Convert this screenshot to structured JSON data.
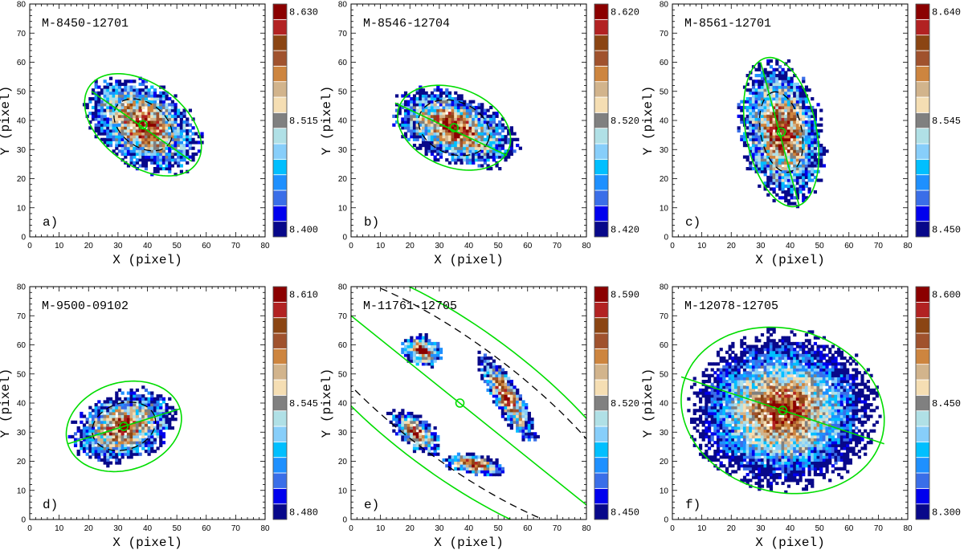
{
  "chart_data": [
    {
      "type": "heatmap",
      "title": "M-8450-12701",
      "panel_label": "a)",
      "xlabel": "X  (pixel)",
      "ylabel": "Y  (pixel)",
      "xlim": [
        0,
        80
      ],
      "ylim": [
        0,
        80
      ],
      "x_ticks": [
        0,
        10,
        20,
        30,
        40,
        50,
        60,
        70,
        80
      ],
      "y_ticks": [
        0,
        10,
        20,
        30,
        40,
        50,
        60,
        70,
        80
      ],
      "colorbar": {
        "top": "8.630",
        "mid": "8.515",
        "bottom": "8.400"
      },
      "center": [
        38.5,
        38.5
      ],
      "blob": {
        "a": 20,
        "b": 13,
        "pa_deg": -35,
        "jitter": 3
      },
      "ellipse": {
        "a": 22.5,
        "b": 14,
        "pa_deg": -37
      },
      "inner_ellipse": {
        "a": 11,
        "b": 7.5,
        "pa_deg": -37
      },
      "major_axis": [
        [
          21,
          50
        ],
        [
          55,
          26
        ]
      ]
    },
    {
      "type": "heatmap",
      "title": "M-8546-12704",
      "panel_label": "b)",
      "xlabel": "X  (pixel)",
      "ylabel": "Y  (pixel)",
      "xlim": [
        0,
        80
      ],
      "ylim": [
        0,
        80
      ],
      "x_ticks": [
        0,
        10,
        20,
        30,
        40,
        50,
        60,
        70,
        80
      ],
      "y_ticks": [
        0,
        10,
        20,
        30,
        40,
        50,
        60,
        70,
        80
      ],
      "colorbar": {
        "top": "8.620",
        "mid": "8.520",
        "bottom": "8.420"
      },
      "center": [
        35,
        37.5
      ],
      "blob": {
        "a": 21,
        "b": 11,
        "pa_deg": -22,
        "jitter": 3
      },
      "ellipse": {
        "a": 20,
        "b": 13.5,
        "pa_deg": -22
      },
      "inner_ellipse": {
        "a": 12.5,
        "b": 9,
        "pa_deg": -22
      },
      "major_axis": [
        [
          15,
          46
        ],
        [
          53,
          28
        ]
      ]
    },
    {
      "type": "heatmap",
      "title": "M-8561-12701",
      "panel_label": "c)",
      "xlabel": "X  (pixel)",
      "ylabel": "Y  (pixel)",
      "xlim": [
        0,
        80
      ],
      "ylim": [
        0,
        80
      ],
      "x_ticks": [
        0,
        10,
        20,
        30,
        40,
        50,
        60,
        70,
        80
      ],
      "y_ticks": [
        0,
        10,
        20,
        30,
        40,
        50,
        60,
        70,
        80
      ],
      "colorbar": {
        "top": "8.640",
        "mid": "8.545",
        "bottom": "8.450"
      },
      "center": [
        37,
        36
      ],
      "blob": {
        "a": 23,
        "b": 13,
        "pa_deg": 100,
        "jitter": 3
      },
      "ellipse": {
        "a": 26,
        "b": 12,
        "pa_deg": 101
      },
      "inner_ellipse": {
        "a": 14,
        "b": 7,
        "pa_deg": 101
      },
      "major_axis": [
        [
          30,
          60
        ],
        [
          43,
          11
        ]
      ]
    },
    {
      "type": "heatmap",
      "title": "M-9500-09102",
      "panel_label": "d)",
      "xlabel": "X  (pixel)",
      "ylabel": "Y  (pixel)",
      "xlim": [
        0,
        80
      ],
      "ylim": [
        0,
        80
      ],
      "x_ticks": [
        0,
        10,
        20,
        30,
        40,
        50,
        60,
        70,
        80
      ],
      "y_ticks": [
        0,
        10,
        20,
        30,
        40,
        50,
        60,
        70,
        80
      ],
      "colorbar": {
        "top": "8.610",
        "mid": "8.545",
        "bottom": "8.480"
      },
      "center": [
        32,
        32
      ],
      "blob": {
        "a": 17,
        "b": 11,
        "pa_deg": 18,
        "jitter": 2.5
      },
      "ellipse": {
        "a": 20,
        "b": 15,
        "pa_deg": 18
      },
      "inner_ellipse": {
        "a": 11,
        "b": 8,
        "pa_deg": 18
      },
      "major_axis": [
        [
          13,
          26
        ],
        [
          51,
          38
        ]
      ]
    },
    {
      "type": "heatmap",
      "title": "M-11761-12705",
      "panel_label": "e)",
      "xlabel": "X  (pixel)",
      "ylabel": "Y  (pixel)",
      "xlim": [
        0,
        80
      ],
      "ylim": [
        0,
        80
      ],
      "x_ticks": [
        0,
        10,
        20,
        30,
        40,
        50,
        60,
        70,
        80
      ],
      "y_ticks": [
        0,
        10,
        20,
        30,
        40,
        50,
        60,
        70,
        80
      ],
      "colorbar": {
        "top": "8.590",
        "mid": "8.520",
        "bottom": "8.450"
      },
      "center": [
        37,
        40
      ],
      "blob_clumps": [
        {
          "cx": 24,
          "cy": 58,
          "a": 7,
          "b": 5,
          "pa_deg": -20
        },
        {
          "cx": 53,
          "cy": 42,
          "a": 17,
          "b": 4.5,
          "pa_deg": -60
        },
        {
          "cx": 22,
          "cy": 30,
          "a": 10,
          "b": 5,
          "pa_deg": -40
        },
        {
          "cx": 42,
          "cy": 19,
          "a": 10,
          "b": 3.5,
          "pa_deg": -10
        }
      ],
      "ellipse": {
        "a": 75,
        "b": 25,
        "pa_deg": -37
      },
      "inner_ellipse": {
        "a": 70,
        "b": 20,
        "pa_deg": -37
      },
      "major_axis": [
        [
          0,
          70
        ],
        [
          80,
          5
        ]
      ]
    },
    {
      "type": "heatmap",
      "title": "M-12078-12705",
      "panel_label": "f)",
      "xlabel": "X  (pixel)",
      "ylabel": "Y  (pixel)",
      "xlim": [
        0,
        80
      ],
      "ylim": [
        0,
        80
      ],
      "x_ticks": [
        0,
        10,
        20,
        30,
        40,
        50,
        60,
        70,
        80
      ],
      "y_ticks": [
        0,
        10,
        20,
        30,
        40,
        50,
        60,
        70,
        80
      ],
      "colorbar": {
        "top": "8.600",
        "mid": "8.450",
        "bottom": "8.300"
      },
      "center": [
        37.5,
        37.5
      ],
      "blob": {
        "a": 29,
        "b": 25,
        "pa_deg": 0,
        "jitter": 4
      },
      "ellipse": {
        "a": 35,
        "b": 28,
        "pa_deg": -16
      },
      "inner_ellipse": null,
      "major_axis": [
        [
          3,
          49
        ],
        [
          72,
          26
        ]
      ]
    }
  ],
  "colormap": [
    "#08088a",
    "#0000ee",
    "#3a6ee8",
    "#1e90ff",
    "#00bfff",
    "#87cefa",
    "#b0e0e6",
    "#808080",
    "#f5deb3",
    "#d2b48c",
    "#cd853f",
    "#a0522d",
    "#8b4513",
    "#b22222",
    "#8b0000"
  ],
  "overlay_color": "#00dd00"
}
